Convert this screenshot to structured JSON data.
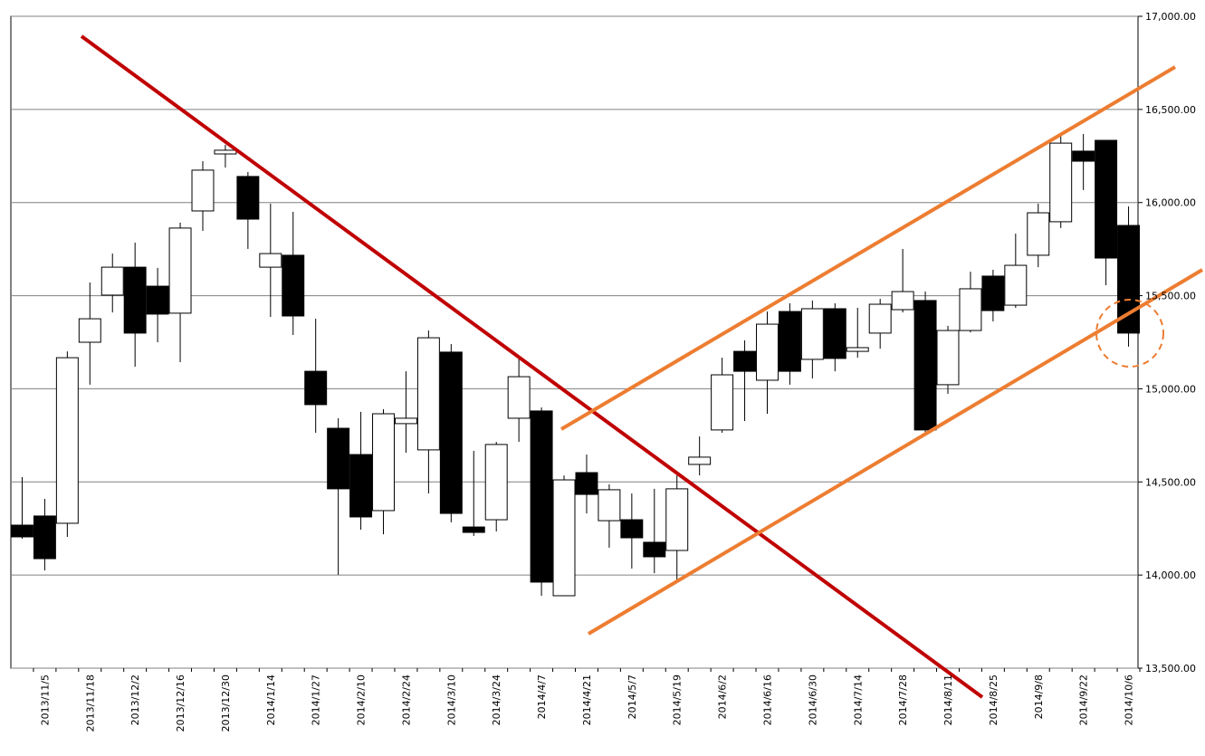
{
  "chart_data": {
    "type": "candlestick",
    "categories": [
      null,
      "2013/11/5",
      null,
      "2013/11/18",
      null,
      "2013/12/2",
      null,
      "2013/12/16",
      null,
      "2013/12/30",
      null,
      "2014/1/14",
      null,
      "2014/1/27",
      null,
      "2014/2/10",
      null,
      "2014/2/24",
      null,
      "2014/3/10",
      null,
      "2014/3/24",
      null,
      "2014/4/7",
      null,
      "2014/4/21",
      null,
      "2014/5/7",
      null,
      "2014/5/19",
      null,
      "2014/6/2",
      null,
      "2014/6/16",
      null,
      "2014/6/30",
      null,
      "2014/7/14",
      null,
      "2014/7/28",
      null,
      "2014/8/11",
      null,
      "2014/8/25",
      null,
      "2014/9/8",
      null,
      "2014/9/22",
      null,
      "2014/10/6"
    ],
    "open": [
      14268,
      14317,
      14278,
      15250,
      15503,
      15653,
      15551,
      15406,
      15955,
      16261,
      16140,
      15653,
      15717,
      15094,
      14788,
      14647,
      14346,
      14813,
      14672,
      15197,
      14258,
      14297,
      14842,
      14881,
      13889,
      14550,
      14292,
      14297,
      14176,
      14132,
      14594,
      14779,
      15201,
      15046,
      15415,
      15158,
      15430,
      15201,
      15299,
      15425,
      15474,
      15022,
      15313,
      15605,
      15449,
      15717,
      15897,
      16276,
      16334,
      15877
    ],
    "high": [
      14526,
      14409,
      15201,
      15571,
      15726,
      15785,
      15649,
      15892,
      16222,
      16310,
      16164,
      15994,
      15950,
      15376,
      14842,
      14876,
      14890,
      15094,
      15313,
      15240,
      14667,
      14715,
      15177,
      14900,
      14535,
      14647,
      14487,
      14438,
      14463,
      14535,
      14744,
      15167,
      15260,
      15415,
      15459,
      15474,
      15459,
      15435,
      15483,
      15751,
      15522,
      15338,
      15629,
      15639,
      15833,
      15994,
      16358,
      16368,
      16334,
      15979
    ],
    "low": [
      14195,
      14025,
      14205,
      15022,
      15410,
      15119,
      15250,
      15143,
      15848,
      16188,
      15751,
      15386,
      15289,
      14764,
      14001,
      14244,
      14219,
      14657,
      14438,
      14283,
      14210,
      14234,
      14715,
      13889,
      13889,
      14331,
      14147,
      14035,
      14010,
      13976,
      14535,
      14764,
      14827,
      14866,
      15022,
      15056,
      15094,
      15167,
      15216,
      15410,
      14754,
      14973,
      15303,
      15362,
      15435,
      15653,
      15863,
      16067,
      15556,
      15226
    ],
    "close": [
      14205,
      14088,
      15167,
      15376,
      15653,
      15299,
      15401,
      15863,
      16174,
      16281,
      15911,
      15726,
      15391,
      14915,
      14463,
      14312,
      14866,
      14842,
      15274,
      14331,
      14229,
      14701,
      15065,
      13962,
      14511,
      14433,
      14458,
      14200,
      14098,
      14463,
      14633,
      15075,
      15094,
      15347,
      15094,
      15430,
      15163,
      15221,
      15454,
      15522,
      14779,
      15313,
      15537,
      15420,
      15663,
      15945,
      16319,
      16222,
      15702,
      15299
    ],
    "colors": {
      "up": "#ffffff",
      "down": "#000000",
      "edge": "#000000"
    },
    "ylim": [
      13500,
      17000
    ],
    "yticks": [
      {
        "value": 13500,
        "label": "13,500.00"
      },
      {
        "value": 14000,
        "label": "14,000.00"
      },
      {
        "value": 14500,
        "label": "14,500.00"
      },
      {
        "value": 15000,
        "label": "15,000.00"
      },
      {
        "value": 15500,
        "label": "15,500.00"
      },
      {
        "value": 16000,
        "label": "16,000.00"
      },
      {
        "value": 16500,
        "label": "16,500.00"
      },
      {
        "value": 17000,
        "label": "17,000.00"
      }
    ],
    "grid": true
  }
}
